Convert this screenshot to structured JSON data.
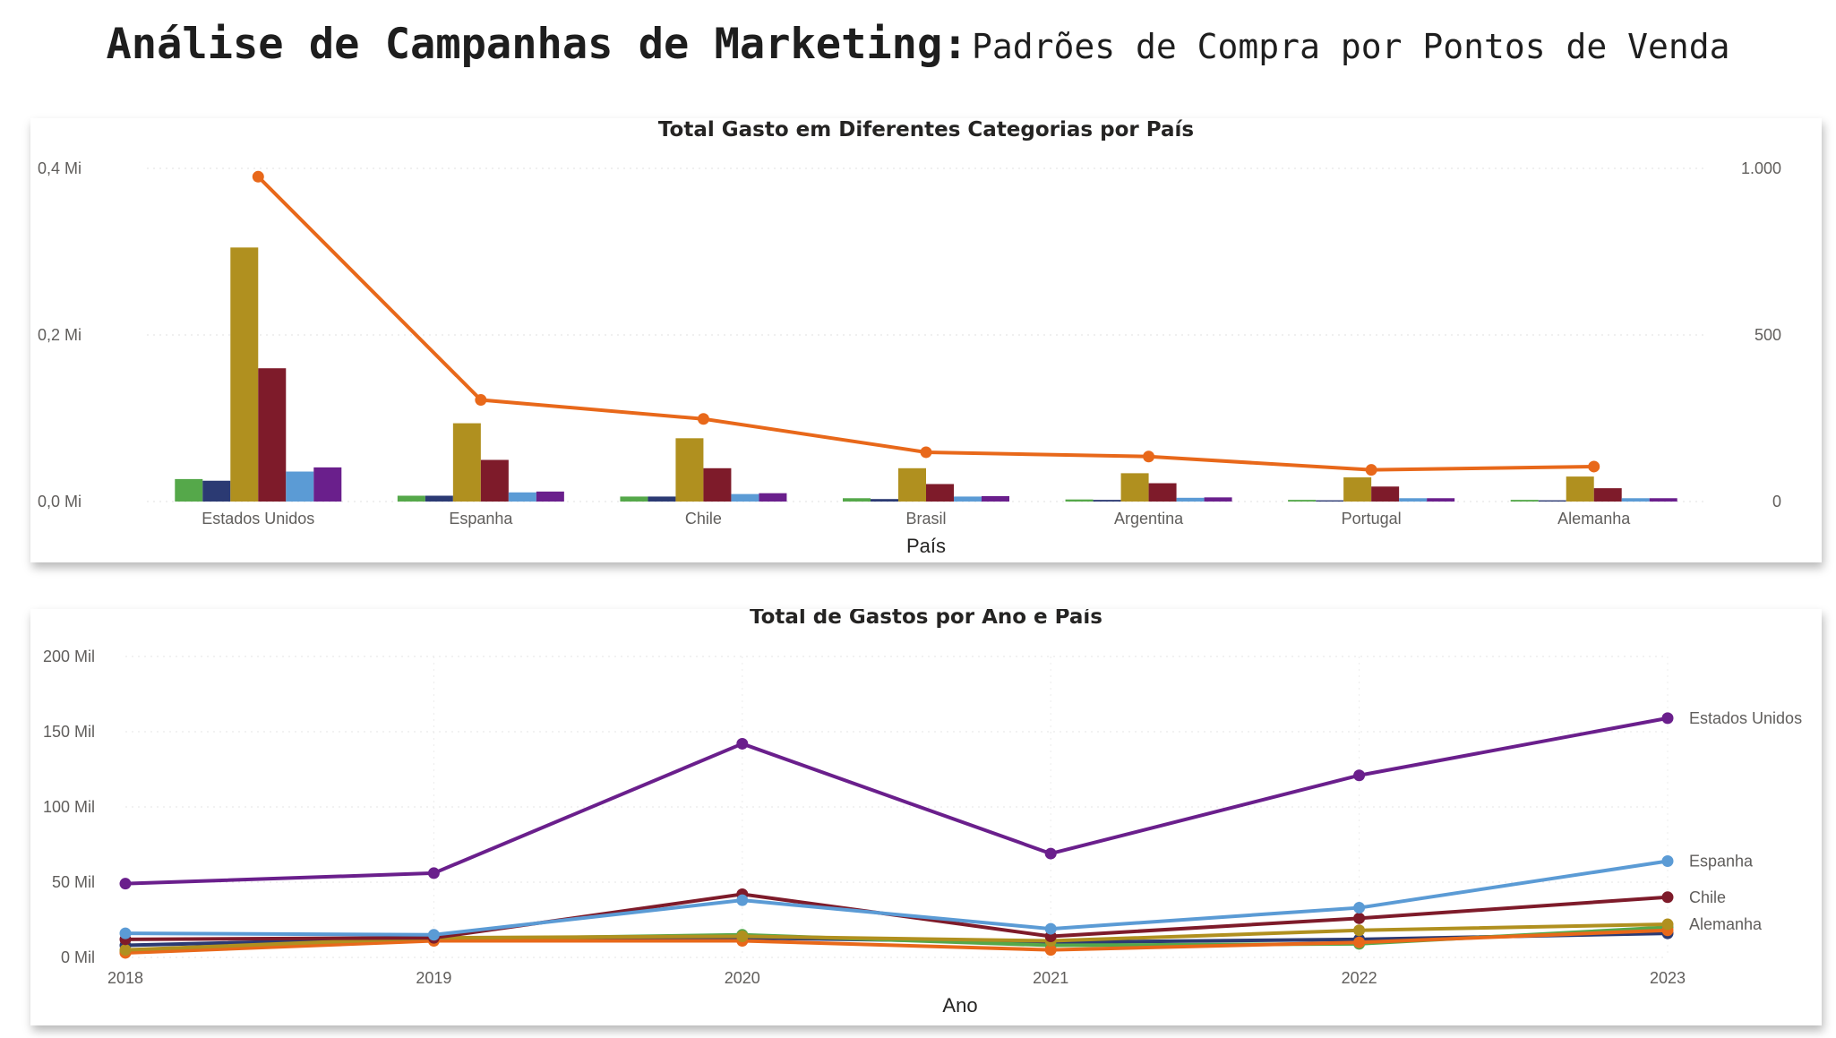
{
  "header": {
    "title_main": "Análise de Campanhas de Marketing:",
    "title_sub": "Padrões de Compra por Pontos de Venda"
  },
  "chart_data": [
    {
      "type": "bar",
      "title": "Total Gasto em Diferentes Categorias por País",
      "xlabel": "País",
      "ylabel": "",
      "categories": [
        "Estados Unidos",
        "Espanha",
        "Chile",
        "Brasil",
        "Argentina",
        "Portugal",
        "Alemanha"
      ],
      "ylim": [
        0,
        400000
      ],
      "y_ticks": [
        {
          "value": 0,
          "label": "0,0 Mi"
        },
        {
          "value": 200000,
          "label": "0,2 Mi"
        },
        {
          "value": 400000,
          "label": "0,4 Mi"
        }
      ],
      "series": [
        {
          "color": "#55A84A",
          "values": [
            27000,
            7000,
            6000,
            4000,
            2500,
            2000,
            2000
          ]
        },
        {
          "color": "#2B3A73",
          "values": [
            25000,
            7000,
            6000,
            3000,
            2000,
            1500,
            1500
          ]
        },
        {
          "color": "#B0901F",
          "values": [
            305000,
            94000,
            76000,
            40000,
            34000,
            29000,
            30000
          ]
        },
        {
          "color": "#7E1B2A",
          "values": [
            160000,
            50000,
            40000,
            21000,
            22000,
            18000,
            16000
          ]
        },
        {
          "color": "#5B9BD5",
          "values": [
            36000,
            11000,
            9000,
            6000,
            4500,
            4000,
            4000
          ]
        },
        {
          "color": "#6A1F8C",
          "values": [
            41000,
            12000,
            10000,
            6500,
            5000,
            4000,
            4000
          ]
        }
      ],
      "line_series": {
        "color": "#E8681A",
        "axis": "right",
        "values": [
          975,
          305,
          248,
          148,
          135,
          95,
          105
        ]
      },
      "y2lim": [
        0,
        1000
      ],
      "y2_ticks": [
        {
          "value": 0,
          "label": "0"
        },
        {
          "value": 500,
          "label": "500"
        },
        {
          "value": 1000,
          "label": "1.000"
        }
      ],
      "grid": true
    },
    {
      "type": "line",
      "title": "Total de Gastos por Ano e País",
      "xlabel": "Ano",
      "ylabel": "",
      "x": [
        "2018",
        "2019",
        "2020",
        "2021",
        "2022",
        "2023"
      ],
      "ylim": [
        0,
        200000
      ],
      "y_ticks": [
        {
          "value": 0,
          "label": "0 Mil"
        },
        {
          "value": 50000,
          "label": "50 Mil"
        },
        {
          "value": 100000,
          "label": "100 Mil"
        },
        {
          "value": 150000,
          "label": "150 Mil"
        },
        {
          "value": 200000,
          "label": "200 Mil"
        }
      ],
      "series": [
        {
          "name": "",
          "color": "#2B3A73",
          "values": [
            8000,
            13000,
            13000,
            10000,
            12000,
            16000
          ]
        },
        {
          "name": "",
          "color": "#55A84A",
          "values": [
            4000,
            12000,
            15000,
            8000,
            9000,
            20000
          ]
        },
        {
          "name": "",
          "color": "#E8681A",
          "values": [
            3000,
            11000,
            11000,
            5000,
            10000,
            18000
          ]
        },
        {
          "name": "Alemanha",
          "color": "#B0901F",
          "values": [
            5000,
            13000,
            14000,
            11000,
            18000,
            22000
          ]
        },
        {
          "name": "Chile",
          "color": "#7E1B2A",
          "values": [
            12000,
            13000,
            42000,
            14000,
            26000,
            40000
          ]
        },
        {
          "name": "Espanha",
          "color": "#5B9BD5",
          "values": [
            16000,
            15000,
            38000,
            19000,
            33000,
            64000
          ]
        },
        {
          "name": "Estados Unidos",
          "color": "#6A1F8C",
          "values": [
            49000,
            56000,
            142000,
            69000,
            121000,
            159000
          ]
        }
      ],
      "grid": true
    }
  ]
}
